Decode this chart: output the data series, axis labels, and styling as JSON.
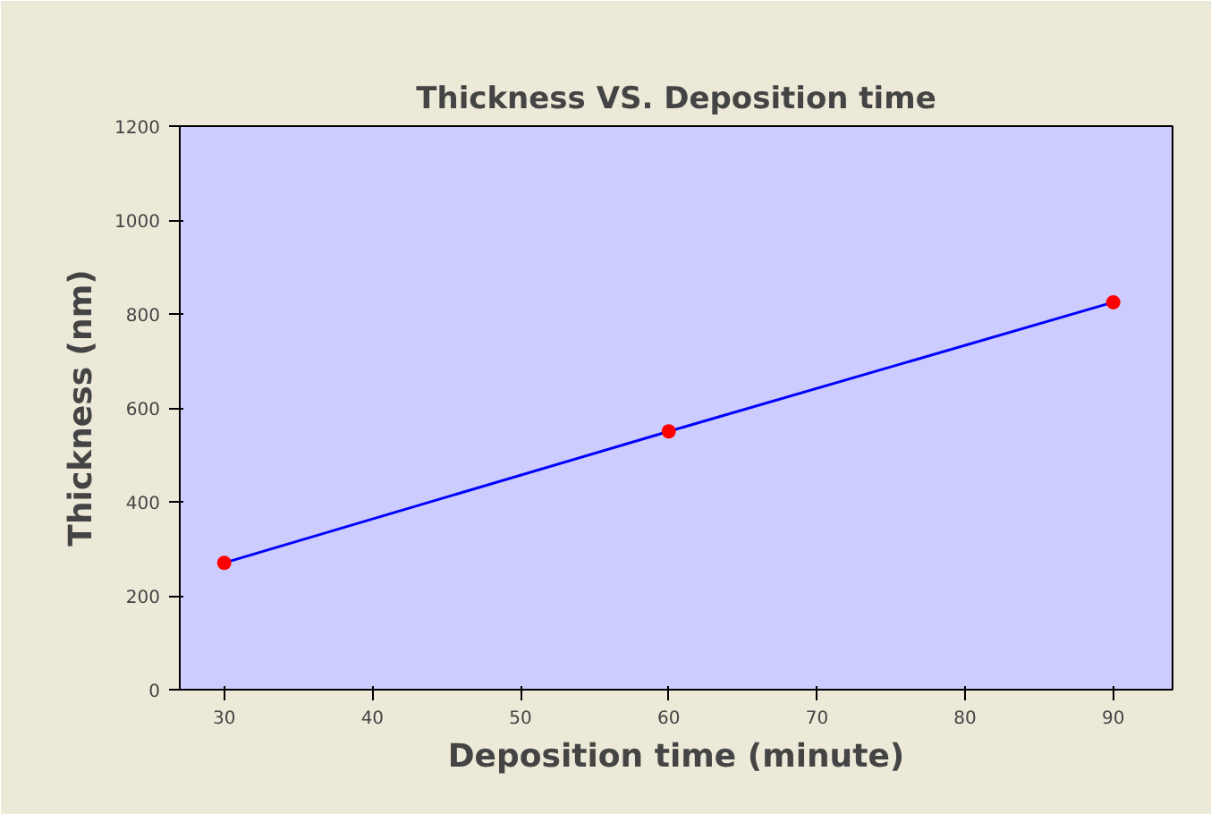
{
  "chart_data": {
    "type": "scatter",
    "title": "Thickness VS. Deposition time",
    "xlabel": "Deposition time (minute)",
    "ylabel": "Thickness (nm)",
    "x": [
      30,
      60,
      90
    ],
    "series": [
      {
        "color": "#ff0000",
        "values": [
          270,
          550,
          825
        ]
      },
      {
        "type": "line",
        "color": "#0000ff",
        "values": [
          270,
          550,
          825
        ]
      }
    ],
    "xlim": [
      27,
      94
    ],
    "xticks": [
      30,
      40,
      50,
      60,
      70,
      80,
      90
    ],
    "ylim": [
      0,
      1200
    ],
    "yticks": [
      0,
      200,
      400,
      600,
      800,
      1000,
      1200
    ],
    "line_style": "solid",
    "grid": false,
    "legend": false
  }
}
